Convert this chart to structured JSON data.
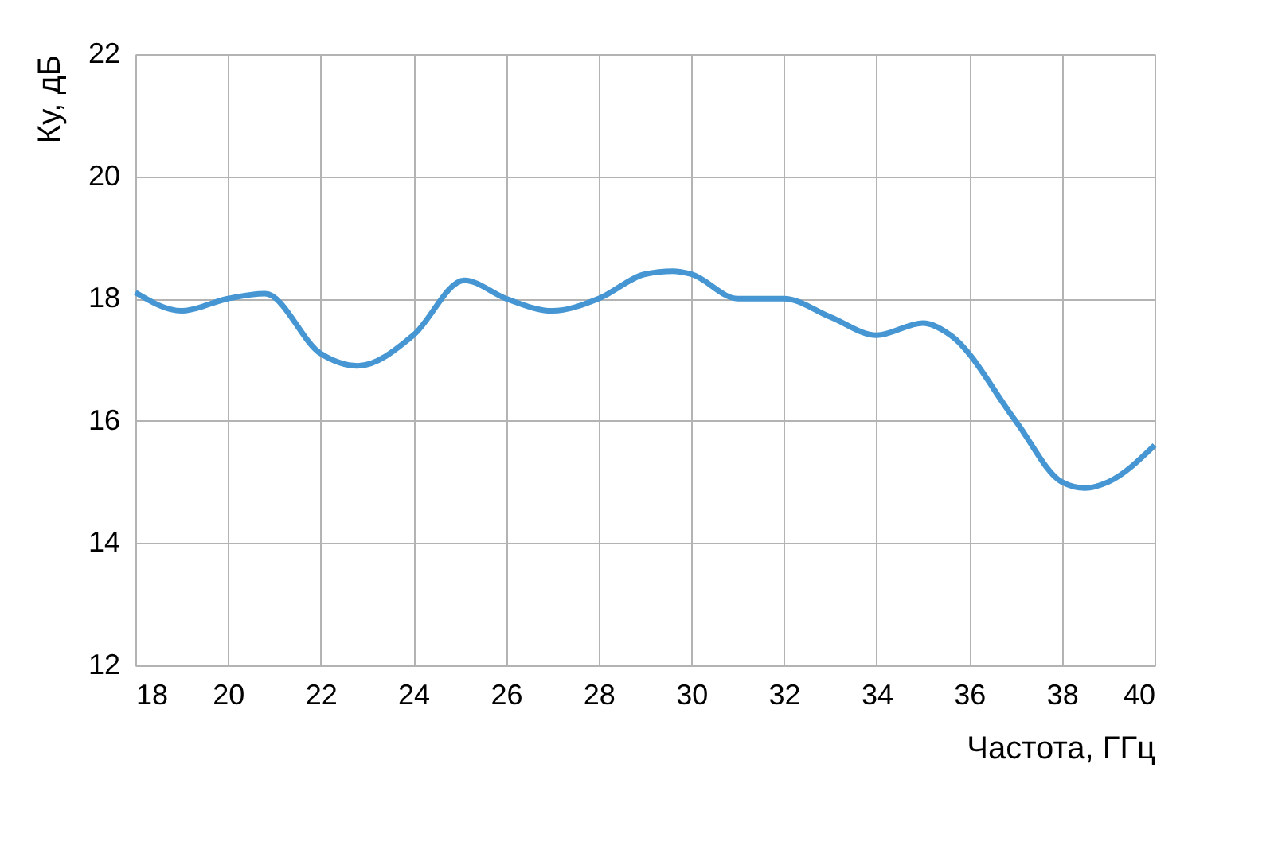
{
  "chart_data": {
    "type": "line",
    "xlabel": "Частота, ГГц",
    "ylabel": "Ку, дБ",
    "x": [
      18,
      19,
      20,
      20.8,
      22,
      22.8,
      24,
      25.1,
      26,
      27,
      28,
      29,
      29.6,
      30,
      31,
      32,
      33,
      34,
      35,
      35.6,
      37,
      38,
      38.5,
      39,
      40
    ],
    "series": [
      {
        "color": "#4596d2",
        "values": [
          18.1,
          17.8,
          18.0,
          18.08,
          17.1,
          16.9,
          17.4,
          18.3,
          18.0,
          17.8,
          18.0,
          18.4,
          18.45,
          18.4,
          18.0,
          18.0,
          17.7,
          17.4,
          17.6,
          17.4,
          16.0,
          15.0,
          14.9,
          15.0,
          15.6
        ]
      }
    ],
    "xlim": [
      18,
      40
    ],
    "xticks": [
      18,
      20,
      22,
      24,
      26,
      28,
      30,
      32,
      34,
      36,
      38,
      40
    ],
    "ylim": [
      12,
      22
    ],
    "yticks": [
      12,
      14,
      16,
      18,
      20,
      22
    ],
    "grid": true,
    "marker": "none",
    "line_style": "solid"
  }
}
